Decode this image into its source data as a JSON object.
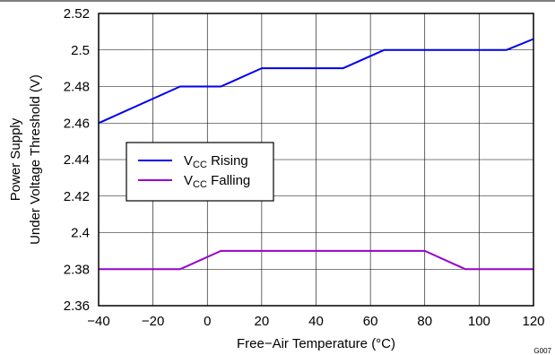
{
  "chart_data": {
    "type": "line",
    "title": "",
    "xlabel": "Free−Air Temperature (°C)",
    "ylabel": [
      "Power Supply",
      "Under Voltage Threshold (V)"
    ],
    "xlim": [
      -40,
      120
    ],
    "ylim": [
      2.36,
      2.52
    ],
    "x_ticks": [
      -40,
      -20,
      0,
      20,
      40,
      60,
      80,
      100,
      120
    ],
    "x_tick_labels": [
      "−40",
      "−20",
      "0",
      "20",
      "40",
      "60",
      "80",
      "100",
      "120"
    ],
    "y_ticks": [
      2.36,
      2.38,
      2.4,
      2.42,
      2.44,
      2.46,
      2.48,
      2.5,
      2.52
    ],
    "y_tick_labels": [
      "2.36",
      "2.38",
      "2.4",
      "2.42",
      "2.44",
      "2.46",
      "2.48",
      "2.5",
      "2.52"
    ],
    "grid": true,
    "legend_position": "middle-left",
    "series": [
      {
        "name_main": "V",
        "name_sub": "CC",
        "name_rest": " Rising",
        "color": "#0000ee",
        "x": [
          -40,
          -10,
          5,
          20,
          50,
          65,
          80,
          110,
          120
        ],
        "y": [
          2.46,
          2.48,
          2.48,
          2.49,
          2.49,
          2.5,
          2.5,
          2.5,
          2.506
        ]
      },
      {
        "name_main": "V",
        "name_sub": "CC",
        "name_rest": " Falling",
        "color": "#9900cc",
        "x": [
          -40,
          -10,
          5,
          20,
          50,
          80,
          95,
          120
        ],
        "y": [
          2.38,
          2.38,
          2.39,
          2.39,
          2.39,
          2.39,
          2.38,
          2.38
        ]
      }
    ],
    "figure_id": "G007"
  }
}
